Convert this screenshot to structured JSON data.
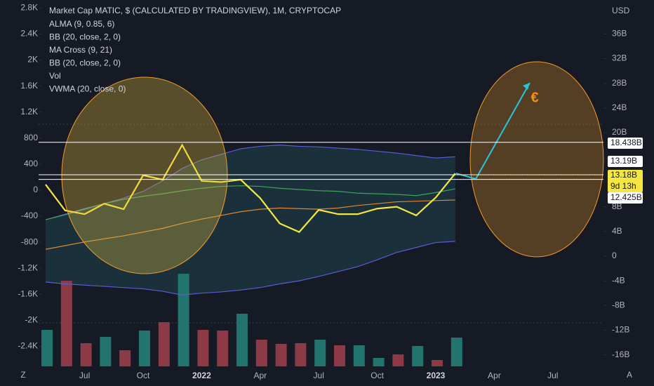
{
  "chart_data": {
    "type": "line",
    "title": "Market Cap MATIC, $ (CALCULATED BY TRADINGVIEW), 1M, CRYPTOCAP",
    "indicators": [
      "ALMA (9, 0.85, 6)",
      "BB (20, close, 2, 0)",
      "MA Cross (9, 21)",
      "BB (20, close, 2, 0)",
      "Vol",
      "VWMA (20, close, 0)"
    ],
    "axis_unit": "USD",
    "x_labels": [
      "Jul",
      "Oct",
      "2022",
      "Apr",
      "Jul",
      "Oct",
      "2023",
      "Apr",
      "Jul"
    ],
    "ylim": [
      -18.2,
      41.5
    ],
    "yticks": [
      {
        "value": 36,
        "label": "36B"
      },
      {
        "value": 32,
        "label": "32B"
      },
      {
        "value": 28,
        "label": "28B"
      },
      {
        "value": 24,
        "label": "24B"
      },
      {
        "value": 20,
        "label": "20B"
      },
      {
        "value": 8,
        "label": "8B"
      },
      {
        "value": 4,
        "label": "4B"
      },
      0,
      {
        "value": -4,
        "label": "-4B"
      },
      {
        "value": -8,
        "label": "-8B"
      },
      {
        "value": -12,
        "label": "-12B"
      },
      {
        "value": -16,
        "label": "-16B"
      }
    ],
    "y2lim": [
      -2740,
      2923
    ],
    "y2ticks": [
      {
        "value": 2800,
        "label": "2.8K"
      },
      {
        "value": 2400,
        "label": "2.4K"
      },
      {
        "value": 2000,
        "label": "2K"
      },
      {
        "value": 1600,
        "label": "1.6K"
      },
      {
        "value": 1200,
        "label": "1.2K"
      },
      800,
      400,
      0,
      -400,
      -800,
      {
        "value": -1200,
        "label": "-1.2K"
      },
      {
        "value": -1600,
        "label": "-1.6K"
      },
      {
        "value": -2000,
        "label": "-2K"
      },
      {
        "value": -2400,
        "label": "-2.4K"
      }
    ],
    "series": [
      {
        "color": "#5b5bd6",
        "values": [
          5.9,
          6.8,
          7.7,
          8.5,
          9.4,
          10.5,
          12.2,
          14.2,
          15.6,
          16.5,
          17.4,
          17.8,
          18.0,
          17.8,
          17.7,
          17.5,
          17.3,
          17.0,
          16.7,
          16.3,
          15.9,
          16.1
        ]
      },
      {
        "color": "#5b5bd6",
        "values": [
          -4.2,
          -4.5,
          -4.7,
          -4.9,
          -5.1,
          -5.3,
          -5.7,
          -6.3,
          -6.0,
          -5.8,
          -5.5,
          -5.1,
          -4.5,
          -4.0,
          -3.3,
          -2.5,
          -1.7,
          -0.6,
          0.6,
          1.4,
          2.2,
          2.4
        ]
      },
      {
        "color": "#e0872f",
        "values": [
          1.1,
          1.7,
          2.3,
          2.8,
          3.3,
          3.9,
          4.5,
          5.3,
          6.0,
          6.6,
          7.2,
          7.6,
          7.8,
          7.7,
          7.6,
          7.8,
          8.2,
          8.5,
          8.8,
          8.9,
          9.0,
          9.1
        ]
      },
      {
        "color": "#3fa35a",
        "values": [
          5.9,
          6.7,
          7.6,
          8.5,
          9.2,
          9.7,
          10.1,
          10.6,
          11.0,
          11.3,
          11.4,
          11.3,
          11.0,
          10.8,
          10.6,
          10.5,
          10.2,
          10.1,
          10.0,
          9.8,
          10.3,
          10.9
        ]
      },
      {
        "color": "#f5e642",
        "values": [
          11.6,
          7.4,
          6.8,
          8.5,
          7.6,
          13.1,
          12.4,
          18.0,
          12.2,
          12.0,
          12.4,
          9.4,
          5.3,
          3.9,
          7.5,
          6.8,
          6.8,
          7.7,
          8.0,
          6.6,
          9.5,
          13.4
        ]
      }
    ],
    "volume": {
      "values": [
        52,
        122,
        33,
        42,
        23,
        51,
        63,
        132,
        52,
        51,
        75,
        38,
        32,
        33,
        38,
        30,
        30,
        12,
        17,
        29,
        9,
        41
      ],
      "colors": [
        "#22756f",
        "#8b3a46",
        "#8b3a46",
        "#22756f",
        "#8b3a46",
        "#22756f",
        "#8b3a46",
        "#22756f",
        "#8b3a46",
        "#8b3a46",
        "#22756f",
        "#8b3a46",
        "#8b3a46",
        "#8b3a46",
        "#22756f",
        "#8b3a46",
        "#22756f",
        "#22756f",
        "#8b3a46",
        "#22756f",
        "#8b3a46",
        "#22756f"
      ]
    },
    "price_labels": [
      {
        "value": 18.438,
        "label": "18.438B",
        "color": "#ffffff"
      },
      {
        "value": 13.19,
        "label": "13.19B",
        "color": "#ffffff"
      },
      {
        "value": 13.18,
        "label": "13.18B",
        "color": "#f5e642",
        "countdown": "9d 13h"
      },
      {
        "value": 12.425,
        "label": "12.425B",
        "color": "#ffffff"
      }
    ],
    "annotation": "€",
    "buttons": [
      "Z",
      "A"
    ]
  }
}
